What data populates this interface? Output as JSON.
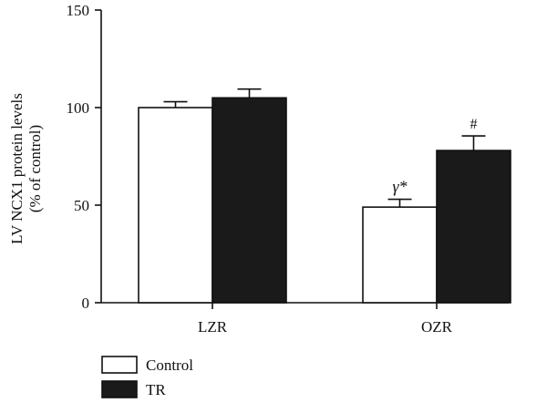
{
  "chart_data": {
    "type": "bar",
    "categories": [
      "LZR",
      "OZR"
    ],
    "series": [
      {
        "name": "Control",
        "values": [
          100,
          49
        ],
        "errors": [
          3,
          4
        ],
        "color": "#ffffff"
      },
      {
        "name": "TR",
        "values": [
          105,
          78
        ],
        "errors": [
          4.5,
          7.5
        ],
        "color": "#1a1a1a"
      }
    ],
    "ylabel_line1": "LV NCX1 protein levels",
    "ylabel_line2": "(% of control)",
    "ylim": [
      0,
      150
    ],
    "yticks": [
      0,
      50,
      100,
      150
    ],
    "legend_position": "bottom-left",
    "annotations": [
      {
        "category": "OZR",
        "series": "Control",
        "text": "γ*"
      },
      {
        "category": "OZR",
        "series": "TR",
        "text": "#"
      }
    ]
  }
}
